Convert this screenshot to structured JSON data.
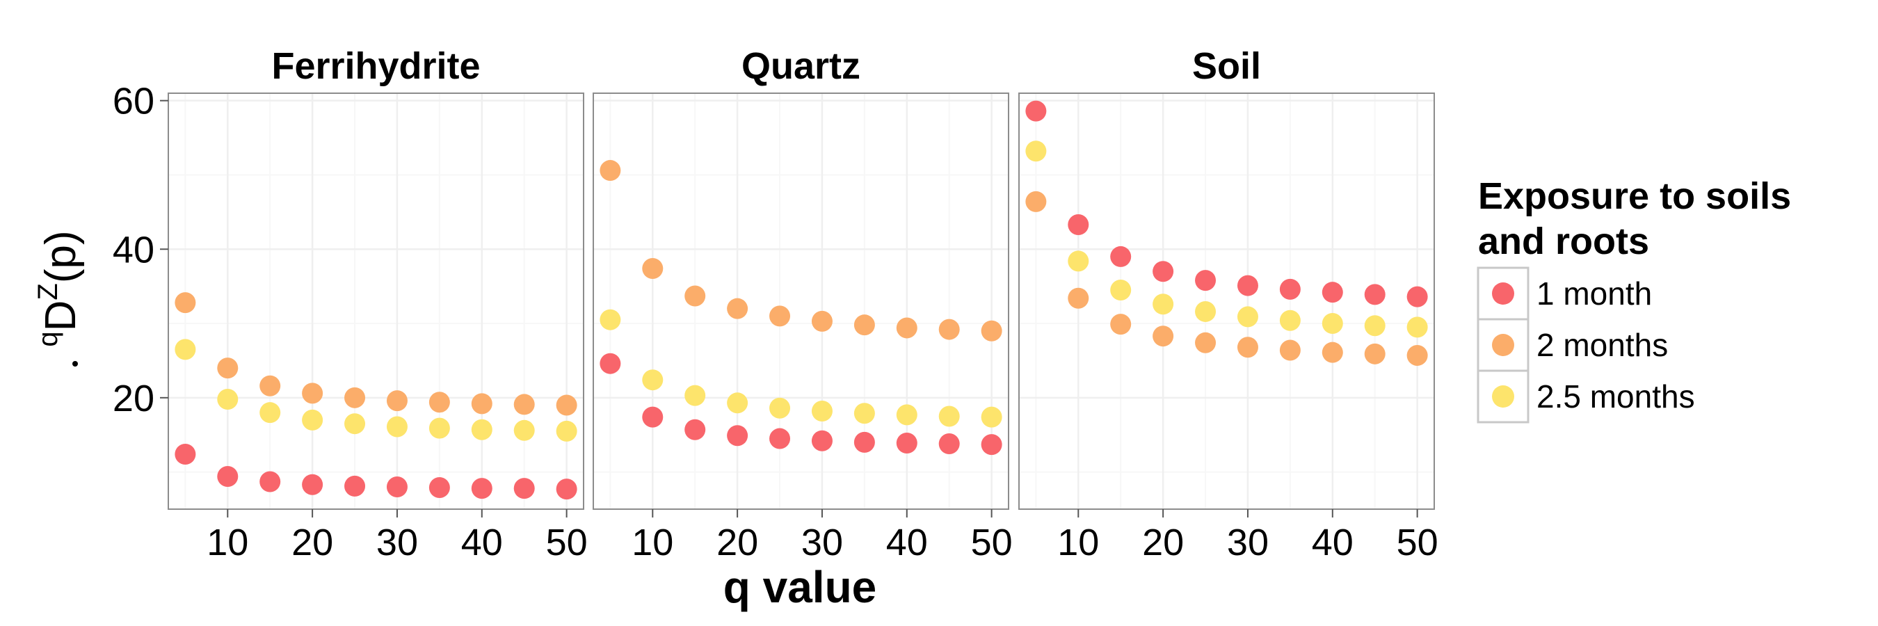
{
  "chart_data": {
    "type": "scatter",
    "xlabel": "q value",
    "ylabel": {
      "prefix": "q",
      "main": "D",
      "super": "Z",
      "suffix": "(p)"
    },
    "xlim": [
      3,
      52
    ],
    "ylim": [
      5,
      61
    ],
    "xticks": [
      10,
      20,
      30,
      40,
      50
    ],
    "yticks": [
      20,
      40,
      60
    ],
    "grid": true,
    "legend": {
      "title": [
        "Exposure to soils",
        "and roots"
      ],
      "position": "right"
    },
    "x": [
      5,
      10,
      15,
      20,
      25,
      30,
      35,
      40,
      45,
      50
    ],
    "series_def": [
      {
        "name": "1 month",
        "color": "#f8656b"
      },
      {
        "name": "2 months",
        "color": "#fbad6a"
      },
      {
        "name": "2.5 months",
        "color": "#fde46c"
      }
    ],
    "panels": [
      {
        "title": "Ferrihydrite",
        "series": [
          {
            "name": "1 month",
            "values": [
              12.4,
              9.4,
              8.7,
              8.3,
              8.1,
              8.0,
              7.9,
              7.8,
              7.8,
              7.7
            ]
          },
          {
            "name": "2 months",
            "values": [
              32.8,
              24.0,
              21.6,
              20.6,
              20.0,
              19.6,
              19.4,
              19.2,
              19.1,
              19.0
            ]
          },
          {
            "name": "2.5 months",
            "values": [
              26.5,
              19.8,
              18.0,
              17.0,
              16.5,
              16.1,
              15.9,
              15.7,
              15.6,
              15.5
            ]
          }
        ]
      },
      {
        "title": "Quartz",
        "series": [
          {
            "name": "1 month",
            "values": [
              24.6,
              17.4,
              15.7,
              14.9,
              14.5,
              14.2,
              14.0,
              13.9,
              13.8,
              13.7
            ]
          },
          {
            "name": "2 months",
            "values": [
              50.6,
              37.4,
              33.7,
              32.0,
              31.0,
              30.3,
              29.8,
              29.4,
              29.2,
              29.0
            ]
          },
          {
            "name": "2.5 months",
            "values": [
              30.5,
              22.4,
              20.3,
              19.3,
              18.6,
              18.2,
              17.9,
              17.7,
              17.5,
              17.4
            ]
          }
        ]
      },
      {
        "title": "Soil",
        "series": [
          {
            "name": "1 month",
            "values": [
              58.6,
              43.3,
              39.0,
              37.0,
              35.8,
              35.1,
              34.6,
              34.2,
              33.9,
              33.6
            ]
          },
          {
            "name": "2 months",
            "values": [
              46.4,
              33.4,
              29.9,
              28.3,
              27.4,
              26.8,
              26.4,
              26.1,
              25.9,
              25.7
            ]
          },
          {
            "name": "2.5 months",
            "values": [
              53.2,
              38.4,
              34.5,
              32.6,
              31.6,
              30.9,
              30.4,
              30.0,
              29.7,
              29.5
            ]
          }
        ]
      }
    ]
  }
}
